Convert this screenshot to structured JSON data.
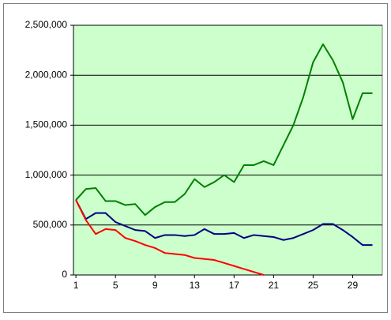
{
  "chart_data": {
    "type": "line",
    "x": [
      1,
      2,
      3,
      4,
      5,
      6,
      7,
      8,
      9,
      10,
      11,
      12,
      13,
      14,
      15,
      16,
      17,
      18,
      19,
      20,
      21,
      22,
      23,
      24,
      25,
      26,
      27,
      28,
      29,
      30,
      31
    ],
    "series": [
      {
        "color": "#008000",
        "values": [
          750000,
          860000,
          870000,
          740000,
          740000,
          700000,
          710000,
          600000,
          680000,
          730000,
          730000,
          810000,
          960000,
          880000,
          930000,
          1000000,
          930000,
          1100000,
          1100000,
          1140000,
          1100000,
          1300000,
          1500000,
          1780000,
          2130000,
          2310000,
          2150000,
          1930000,
          1560000,
          1820000,
          1820000
        ]
      },
      {
        "color": "#000080",
        "values": [
          750000,
          560000,
          620000,
          620000,
          530000,
          490000,
          450000,
          440000,
          370000,
          400000,
          400000,
          390000,
          400000,
          460000,
          410000,
          410000,
          420000,
          370000,
          400000,
          390000,
          380000,
          350000,
          370000,
          410000,
          450000,
          510000,
          510000,
          450000,
          380000,
          300000,
          300000
        ]
      },
      {
        "color": "#ff0000",
        "values": [
          750000,
          550000,
          410000,
          460000,
          450000,
          370000,
          340000,
          300000,
          270000,
          220000,
          210000,
          200000,
          170000,
          160000,
          150000,
          120000,
          90000,
          60000,
          30000,
          0,
          null,
          null,
          null,
          null,
          null,
          null,
          null,
          null,
          null,
          null,
          null
        ]
      }
    ],
    "xlim": [
      0.75,
      32
    ],
    "xticks": [
      1,
      5,
      9,
      13,
      17,
      21,
      25,
      29
    ],
    "ylim": [
      0,
      2500000
    ],
    "yticks": [
      0,
      {
        "value": 500000,
        "label": "500,000"
      },
      {
        "value": 1000000,
        "label": "1,000,000"
      },
      {
        "value": 1500000,
        "label": "1,500,000"
      },
      {
        "value": 2000000,
        "label": "2,000,000"
      },
      {
        "value": 2500000,
        "label": "2,500,000"
      }
    ],
    "grid": true,
    "plot_color": "#ccffcc"
  }
}
